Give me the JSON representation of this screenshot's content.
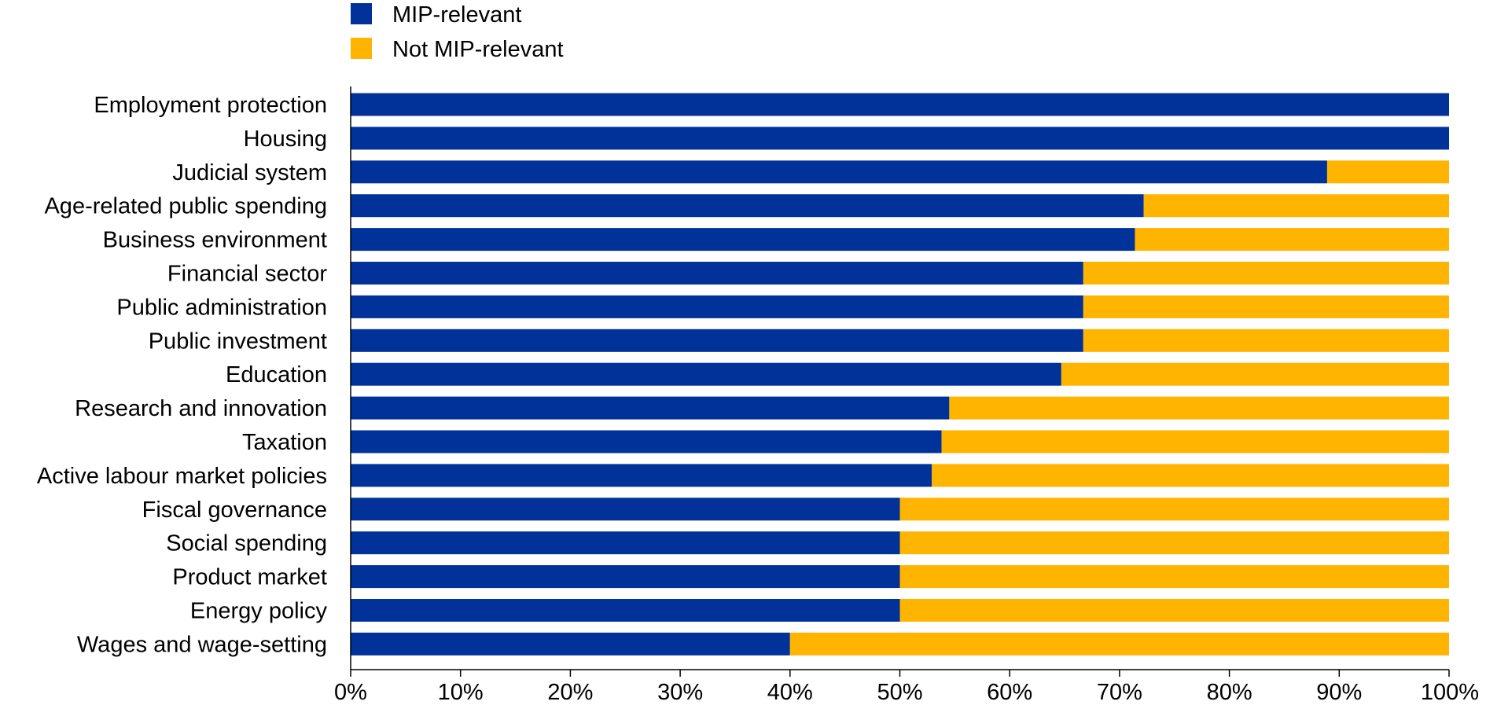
{
  "chart_data": {
    "type": "bar",
    "orientation": "horizontal",
    "stacked": true,
    "title": "",
    "xlabel": "",
    "ylabel": "",
    "xlim": [
      0,
      100
    ],
    "x_ticks": [
      0,
      10,
      20,
      30,
      40,
      50,
      60,
      70,
      80,
      90,
      100
    ],
    "x_tick_labels": [
      "0%",
      "10%",
      "20%",
      "30%",
      "40%",
      "50%",
      "60%",
      "70%",
      "80%",
      "90%",
      "100%"
    ],
    "grid": false,
    "legend_position": "top-left",
    "categories": [
      "Employment protection",
      "Housing",
      "Judicial system",
      "Age-related public spending",
      "Business environment",
      "Financial sector",
      "Public administration",
      "Public investment",
      "Education",
      "Research and innovation",
      "Taxation",
      "Active labour market policies",
      "Fiscal governance",
      "Social spending",
      "Product market",
      "Energy policy",
      "Wages and wage-setting"
    ],
    "series": [
      {
        "name": "MIP-relevant",
        "color": "#003299",
        "values": [
          100,
          100,
          88.9,
          72.2,
          71.4,
          66.7,
          66.7,
          66.7,
          64.7,
          54.5,
          53.8,
          52.9,
          50,
          50,
          50,
          50,
          40
        ]
      },
      {
        "name": "Not MIP-relevant",
        "color": "#FFB400",
        "values": [
          0,
          0,
          11.1,
          27.8,
          28.6,
          33.3,
          33.3,
          33.3,
          35.3,
          45.5,
          46.2,
          47.1,
          50,
          50,
          50,
          50,
          60
        ]
      }
    ]
  }
}
